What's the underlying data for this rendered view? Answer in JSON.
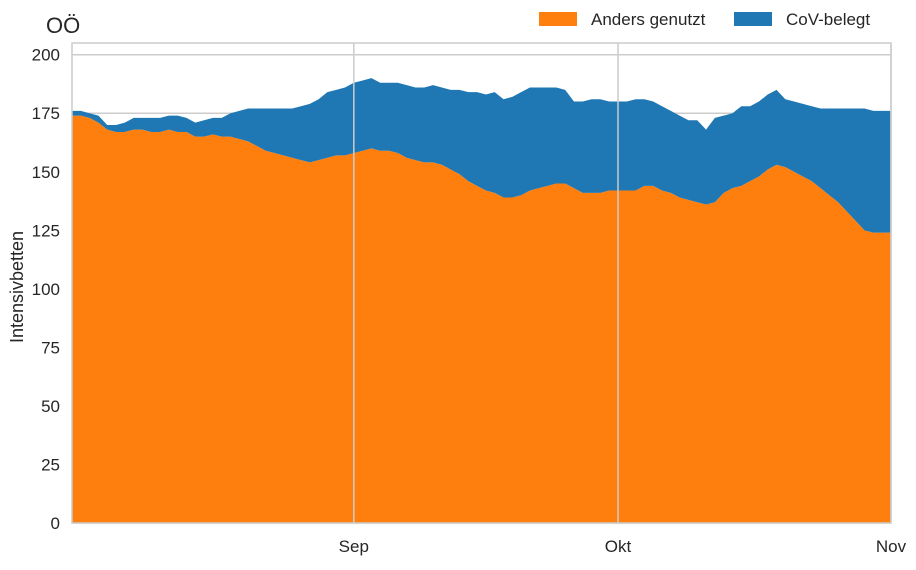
{
  "chart_data": {
    "type": "area",
    "stacked": true,
    "title": "OÖ",
    "xlabel": "",
    "ylabel": "Intensivbetten",
    "x_start": "2020-07-31",
    "x_end": "2020-11-01",
    "xlim": [
      "2020-07-31",
      "2020-11-01"
    ],
    "ylim": [
      0,
      205
    ],
    "grid": true,
    "legend_position": "top-right",
    "x_ticks": [
      {
        "date": "2020-09-01",
        "label": "Sep"
      },
      {
        "date": "2020-10-01",
        "label": "Okt"
      },
      {
        "date": "2020-11-01",
        "label": "Nov"
      }
    ],
    "y_ticks": [
      0,
      25,
      50,
      75,
      100,
      125,
      150,
      175,
      200
    ],
    "dates": [
      "2020-07-31",
      "2020-08-01",
      "2020-08-02",
      "2020-08-03",
      "2020-08-04",
      "2020-08-05",
      "2020-08-06",
      "2020-08-07",
      "2020-08-08",
      "2020-08-09",
      "2020-08-10",
      "2020-08-11",
      "2020-08-12",
      "2020-08-13",
      "2020-08-14",
      "2020-08-15",
      "2020-08-16",
      "2020-08-17",
      "2020-08-18",
      "2020-08-19",
      "2020-08-20",
      "2020-08-21",
      "2020-08-22",
      "2020-08-23",
      "2020-08-24",
      "2020-08-25",
      "2020-08-26",
      "2020-08-27",
      "2020-08-28",
      "2020-08-29",
      "2020-08-30",
      "2020-08-31",
      "2020-09-01",
      "2020-09-02",
      "2020-09-03",
      "2020-09-04",
      "2020-09-05",
      "2020-09-06",
      "2020-09-07",
      "2020-09-08",
      "2020-09-09",
      "2020-09-10",
      "2020-09-11",
      "2020-09-12",
      "2020-09-13",
      "2020-09-14",
      "2020-09-15",
      "2020-09-16",
      "2020-09-17",
      "2020-09-18",
      "2020-09-19",
      "2020-09-20",
      "2020-09-21",
      "2020-09-22",
      "2020-09-23",
      "2020-09-24",
      "2020-09-25",
      "2020-09-26",
      "2020-09-27",
      "2020-09-28",
      "2020-09-29",
      "2020-09-30",
      "2020-10-01",
      "2020-10-02",
      "2020-10-03",
      "2020-10-04",
      "2020-10-05",
      "2020-10-06",
      "2020-10-07",
      "2020-10-08",
      "2020-10-09",
      "2020-10-10",
      "2020-10-11",
      "2020-10-12",
      "2020-10-13",
      "2020-10-14",
      "2020-10-15",
      "2020-10-16",
      "2020-10-17",
      "2020-10-18",
      "2020-10-19",
      "2020-10-20",
      "2020-10-21",
      "2020-10-22",
      "2020-10-23",
      "2020-10-24",
      "2020-10-25",
      "2020-10-26",
      "2020-10-27",
      "2020-10-28",
      "2020-10-29",
      "2020-10-30",
      "2020-10-31",
      "2020-11-01"
    ],
    "series": [
      {
        "name": "Anders genutzt",
        "color": "#ff7f0e",
        "values": [
          174,
          174,
          173,
          171,
          168,
          167,
          167,
          168,
          168,
          167,
          167,
          168,
          167,
          167,
          165,
          165,
          166,
          165,
          165,
          164,
          163,
          161,
          159,
          158,
          157,
          156,
          155,
          154,
          155,
          156,
          157,
          157,
          158,
          159,
          160,
          159,
          159,
          158,
          156,
          155,
          154,
          154,
          153,
          151,
          149,
          146,
          144,
          142,
          141,
          139,
          139,
          140,
          142,
          143,
          144,
          145,
          145,
          143,
          141,
          141,
          141,
          142,
          142,
          142,
          142,
          144,
          144,
          142,
          141,
          139,
          138,
          137,
          136,
          137,
          141,
          143,
          144,
          146,
          148,
          151,
          153,
          152,
          150,
          148,
          146,
          143,
          140,
          137,
          133,
          129,
          125,
          124,
          124,
          124
        ],
        "comment": "values read per day; last entries taper near axis end"
      },
      {
        "name": "CoV-belegt",
        "color": "#1f77b4",
        "values": [
          2,
          2,
          2,
          3,
          2,
          3,
          4,
          5,
          5,
          6,
          6,
          6,
          7,
          6,
          6,
          7,
          7,
          8,
          10,
          12,
          14,
          16,
          18,
          19,
          20,
          21,
          23,
          25,
          26,
          28,
          28,
          29,
          30,
          30,
          30,
          29,
          29,
          30,
          31,
          31,
          32,
          33,
          33,
          34,
          36,
          38,
          40,
          41,
          43,
          42,
          43,
          44,
          44,
          43,
          42,
          41,
          40,
          37,
          39,
          40,
          40,
          38,
          38,
          38,
          39,
          37,
          36,
          36,
          35,
          35,
          34,
          35,
          32,
          36,
          33,
          32,
          34,
          32,
          32,
          32,
          32,
          29,
          30,
          31,
          32,
          34,
          37,
          40,
          44,
          48,
          52,
          52,
          52,
          52
        ]
      }
    ]
  }
}
